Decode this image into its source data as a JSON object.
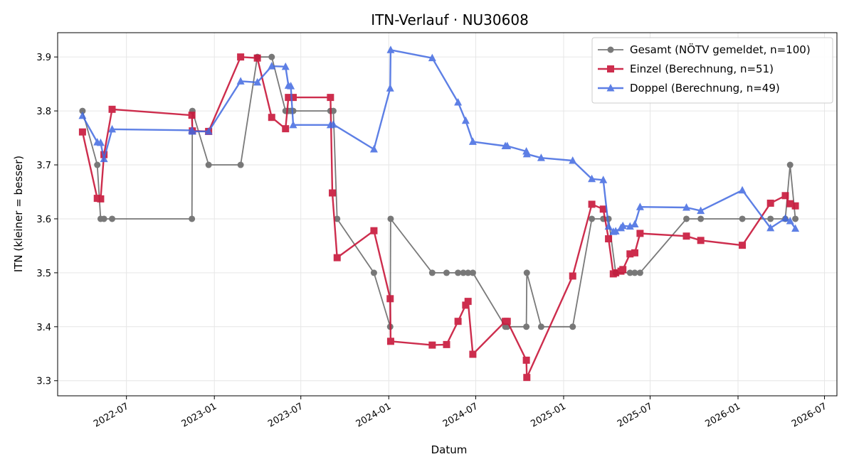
{
  "chart_data": {
    "type": "line",
    "title": "ITN-Verlauf · NU30608",
    "xlabel": "Datum",
    "ylabel": "ITN  (kleiner = besser)",
    "xlim": [
      "2022-02-07",
      "2026-07-27"
    ],
    "ylim": [
      3.272,
      3.945
    ],
    "x_ticks": [
      "2022-07-01",
      "2023-01-01",
      "2023-07-01",
      "2024-01-01",
      "2024-07-01",
      "2025-01-01",
      "2025-07-01",
      "2026-01-01",
      "2026-07-01"
    ],
    "x_tick_labels": [
      "2022-07",
      "2023-01",
      "2023-07",
      "2024-01",
      "2024-07",
      "2025-01",
      "2025-07",
      "2026-01",
      "2026-07"
    ],
    "y_ticks": [
      3.3,
      3.4,
      3.5,
      3.6,
      3.7,
      3.8,
      3.9
    ],
    "y_tick_labels": [
      "3.3",
      "3.4",
      "3.5",
      "3.6",
      "3.7",
      "3.8",
      "3.9"
    ],
    "grid": true,
    "legend_position": "top-right",
    "series": [
      {
        "name": "Gesamt (NÖTV gemeldet, n=100)",
        "color": "#4d4d4d",
        "marker": "circle",
        "x": [
          "2022-03-31",
          "2022-05-01",
          "2022-05-08",
          "2022-05-15",
          "2022-06-01",
          "2022-11-15",
          "2022-11-16",
          "2022-12-20",
          "2023-02-25",
          "2023-04-01",
          "2023-05-01",
          "2023-05-30",
          "2023-06-05",
          "2023-06-10",
          "2023-06-15",
          "2023-09-01",
          "2023-09-07",
          "2023-09-15",
          "2023-12-01",
          "2024-01-04",
          "2024-01-05",
          "2024-04-01",
          "2024-05-01",
          "2024-05-25",
          "2024-06-05",
          "2024-06-15",
          "2024-06-25",
          "2024-09-01",
          "2024-09-05",
          "2024-10-15",
          "2024-10-16",
          "2024-11-15",
          "2025-01-20",
          "2025-03-01",
          "2025-03-25",
          "2025-04-05",
          "2025-04-20",
          "2025-05-20",
          "2025-05-30",
          "2025-06-10",
          "2025-09-15",
          "2025-10-15",
          "2026-01-10",
          "2026-03-10",
          "2026-04-10",
          "2026-04-20",
          "2026-05-01"
        ],
        "y": [
          3.8,
          3.7,
          3.6,
          3.6,
          3.6,
          3.6,
          3.8,
          3.7,
          3.7,
          3.9,
          3.9,
          3.8,
          3.8,
          3.8,
          3.8,
          3.8,
          3.8,
          3.6,
          3.5,
          3.4,
          3.6,
          3.5,
          3.5,
          3.5,
          3.5,
          3.5,
          3.5,
          3.4,
          3.4,
          3.4,
          3.5,
          3.4,
          3.4,
          3.6,
          3.6,
          3.6,
          3.5,
          3.5,
          3.5,
          3.5,
          3.6,
          3.6,
          3.6,
          3.6,
          3.6,
          3.7,
          3.6
        ]
      },
      {
        "name": "Einzel (Berechnung, n=51)",
        "color": "#c8173a",
        "marker": "square",
        "x": [
          "2022-03-31",
          "2022-05-01",
          "2022-05-08",
          "2022-05-15",
          "2022-06-01",
          "2022-11-15",
          "2022-11-16",
          "2022-12-20",
          "2023-02-25",
          "2023-04-01",
          "2023-05-01",
          "2023-05-30",
          "2023-06-05",
          "2023-06-15",
          "2023-09-01",
          "2023-09-05",
          "2023-09-15",
          "2023-12-01",
          "2024-01-04",
          "2024-01-05",
          "2024-04-01",
          "2024-05-01",
          "2024-05-25",
          "2024-06-10",
          "2024-06-15",
          "2024-06-25",
          "2024-09-01",
          "2024-09-05",
          "2024-10-15",
          "2024-10-16",
          "2025-01-20",
          "2025-03-01",
          "2025-03-25",
          "2025-04-05",
          "2025-04-15",
          "2025-04-20",
          "2025-05-01",
          "2025-05-05",
          "2025-05-20",
          "2025-05-30",
          "2025-06-10",
          "2025-09-15",
          "2025-10-15",
          "2026-01-10",
          "2026-03-10",
          "2026-04-10",
          "2026-04-20",
          "2026-05-01"
        ],
        "y": [
          3.761,
          3.638,
          3.637,
          3.719,
          3.803,
          3.792,
          3.763,
          3.762,
          3.9,
          3.898,
          3.788,
          3.767,
          3.825,
          3.825,
          3.825,
          3.648,
          3.528,
          3.578,
          3.452,
          3.373,
          3.366,
          3.367,
          3.41,
          3.44,
          3.447,
          3.349,
          3.41,
          3.41,
          3.338,
          3.306,
          3.494,
          3.627,
          3.618,
          3.563,
          3.498,
          3.5,
          3.503,
          3.506,
          3.535,
          3.537,
          3.573,
          3.568,
          3.56,
          3.551,
          3.629,
          3.643,
          3.628,
          3.624
        ]
      },
      {
        "name": "Doppel (Berechnung, n=49)",
        "color": "#4169e1",
        "marker": "triangle",
        "x": [
          "2022-03-31",
          "2022-05-01",
          "2022-05-08",
          "2022-05-15",
          "2022-06-01",
          "2022-11-15",
          "2022-11-16",
          "2022-12-20",
          "2023-02-25",
          "2023-04-01",
          "2023-05-01",
          "2023-05-30",
          "2023-06-05",
          "2023-06-10",
          "2023-06-15",
          "2023-09-01",
          "2023-09-07",
          "2023-12-01",
          "2024-01-04",
          "2024-01-05",
          "2024-04-01",
          "2024-05-25",
          "2024-06-10",
          "2024-06-25",
          "2024-09-01",
          "2024-09-05",
          "2024-10-15",
          "2024-10-16",
          "2024-11-15",
          "2025-01-20",
          "2025-03-01",
          "2025-03-25",
          "2025-04-05",
          "2025-04-15",
          "2025-04-20",
          "2025-05-01",
          "2025-05-05",
          "2025-05-20",
          "2025-05-30",
          "2025-06-10",
          "2025-09-15",
          "2025-10-15",
          "2026-01-10",
          "2026-03-10",
          "2026-04-10",
          "2026-04-20",
          "2026-05-01"
        ],
        "y": [
          3.791,
          3.742,
          3.741,
          3.711,
          3.766,
          3.764,
          3.762,
          3.762,
          3.855,
          3.853,
          3.883,
          3.882,
          3.847,
          3.846,
          3.774,
          3.774,
          3.775,
          3.729,
          3.842,
          3.913,
          3.898,
          3.816,
          3.782,
          3.743,
          3.735,
          3.735,
          3.725,
          3.72,
          3.713,
          3.708,
          3.674,
          3.672,
          3.586,
          3.576,
          3.577,
          3.583,
          3.587,
          3.586,
          3.59,
          3.622,
          3.621,
          3.615,
          3.653,
          3.583,
          3.601,
          3.596,
          3.582
        ]
      }
    ]
  }
}
